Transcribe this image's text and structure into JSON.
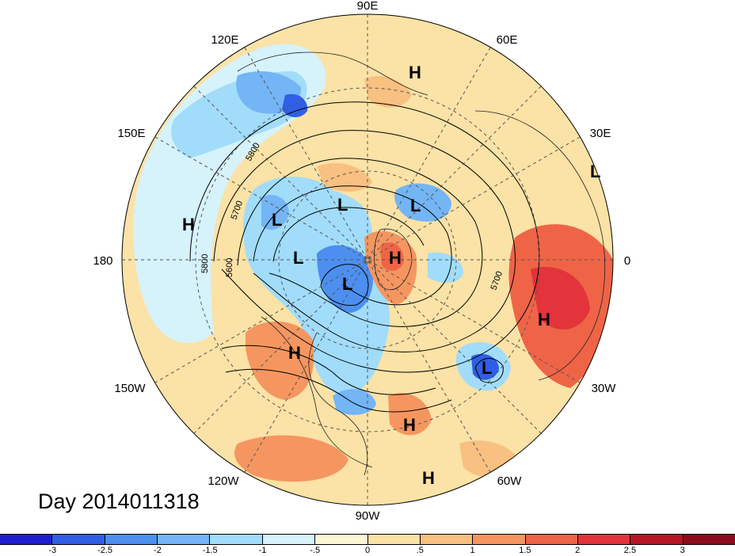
{
  "title": "Day 2014011318",
  "longitude_labels": [
    "90E",
    "60E",
    "120E",
    "30E",
    "150E",
    "180",
    "0",
    "150W",
    "30W",
    "120W",
    "60W",
    "90W"
  ],
  "contour_labels": [
    "5800",
    "5700",
    "5800",
    "5600",
    "5700"
  ],
  "pressure_centers": [
    "H",
    "H",
    "L",
    "L",
    "L",
    "H",
    "L",
    "L",
    "H",
    "H",
    "L",
    "H",
    "H"
  ],
  "colorbar": {
    "ticks": [
      "-3",
      "-2.5",
      "-2",
      "-1.5",
      "-1",
      "-.5",
      "0",
      ".5",
      "1",
      "1.5",
      "2",
      "2.5",
      "3"
    ],
    "colors": [
      "#1f1fd0",
      "#2f5fe6",
      "#4c8ff0",
      "#73b5f5",
      "#a1dcfa",
      "#d6f2fb",
      "#fdf6d4",
      "#fbe2a6",
      "#f8c081",
      "#f59660",
      "#ef6447",
      "#e2343a",
      "#b71524",
      "#8c0c1c"
    ]
  }
}
